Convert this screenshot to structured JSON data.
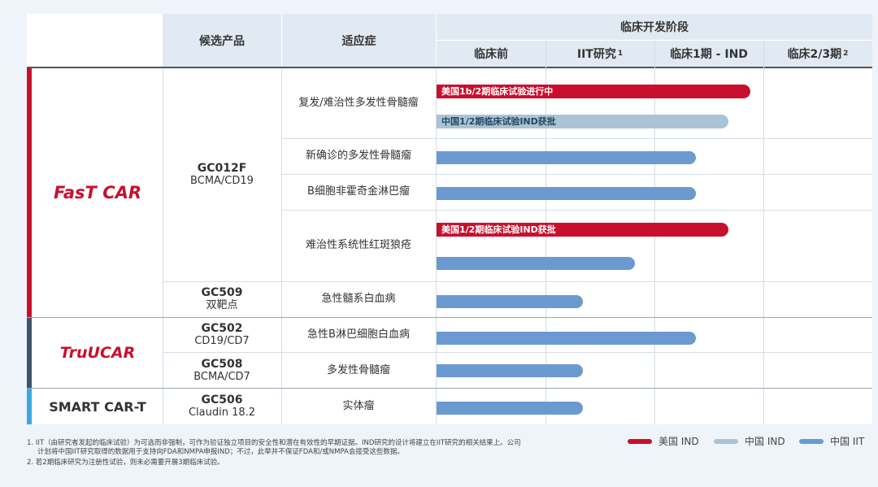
{
  "header": {
    "candidate": "候选产品",
    "indication": "适应症",
    "stage_group": "临床开发阶段",
    "stages": [
      "临床前",
      "IIT研究",
      "临床1期 - IND",
      "临床2/3期"
    ],
    "stage_sups": [
      "",
      "1",
      "",
      "2"
    ]
  },
  "brands": [
    {
      "name": "FasT CAR",
      "color": "#c8102e"
    },
    {
      "name": "TruUCAR",
      "color": "#c8102e"
    },
    {
      "name": "SMART CAR-T",
      "color": "#333333"
    }
  ],
  "products": [
    {
      "code": "GC012F",
      "target": "BCMA/CD19"
    },
    {
      "code": "GC509",
      "target": "双靶点"
    },
    {
      "code": "GC502",
      "target": "CD19/CD7"
    },
    {
      "code": "GC508",
      "target": "BCMA/CD7"
    },
    {
      "code": "GC506",
      "target": "Claudin 18.2"
    }
  ],
  "indications": [
    "复发/难治性多发性骨髓瘤",
    "新确诊的多发性骨髓瘤",
    "B细胞非霍奇金淋巴瘤",
    "难治性系统性红斑狼疮",
    "急性髓系白血病",
    "急性B淋巴细胞白血病",
    "多发性骨髓瘤",
    "实体瘤"
  ],
  "bars": [
    {
      "kind": "us",
      "progress": 0.72,
      "label": "美国1b/2期临床试验进行中"
    },
    {
      "kind": "cnind",
      "progress": 0.67,
      "label": "中国1/2期临床试验IND获批"
    },
    {
      "kind": "cniit",
      "progress": 0.595,
      "label": ""
    },
    {
      "kind": "cniit",
      "progress": 0.595,
      "label": ""
    },
    {
      "kind": "us",
      "progress": 0.67,
      "label": "美国1/2期临床试验IND获批"
    },
    {
      "kind": "cniit",
      "progress": 0.455,
      "label": ""
    },
    {
      "kind": "cniit",
      "progress": 0.335,
      "label": ""
    },
    {
      "kind": "cniit",
      "progress": 0.595,
      "label": ""
    },
    {
      "kind": "cniit",
      "progress": 0.335,
      "label": ""
    },
    {
      "kind": "cniit",
      "progress": 0.335,
      "label": ""
    }
  ],
  "legend": [
    {
      "label": "美国 IND",
      "color": "#c8102e"
    },
    {
      "label": "中国 IND",
      "color": "#a9c4d6"
    },
    {
      "label": "中国 IIT",
      "color": "#6a9ad0"
    }
  ],
  "footnotes": {
    "note1_line1": "1. IIT（由研究者发起的临床试验）为可选而非强制，可作为验证独立项目的安全性和潜在有效性的早期证据。IND研究的设计将建立在IIT研究的相关结果上。公司",
    "note1_line2": "计划将中国IIT研究取得的数据用于支持向FDA和NMPA申报IND；不过，此举并不保证FDA和/或NMPA会接受这些数据。",
    "note2": "2. 若2期临床研究为注册性试验，则未必需要开展3期临床试验。"
  }
}
